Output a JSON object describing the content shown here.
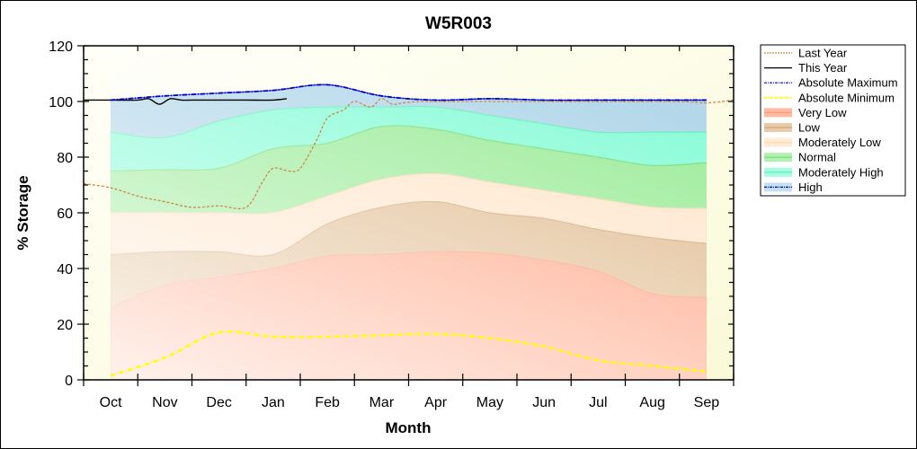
{
  "chart_data": {
    "type": "area",
    "title": "W5R003",
    "xlabel": "Month",
    "ylabel": "% Storage",
    "ylim": [
      0,
      120
    ],
    "yticks": [
      "0",
      "20",
      "40",
      "60",
      "80",
      "100",
      "120"
    ],
    "categories": [
      "Oct",
      "Nov",
      "Dec",
      "Jan",
      "Feb",
      "Mar",
      "Apr",
      "May",
      "Jun",
      "Jul",
      "Aug",
      "Sep"
    ],
    "bands": [
      {
        "name": "High",
        "color": "#b4d8ea",
        "edge": "#0000cc",
        "values": [
          100.5,
          102,
          103,
          104,
          106,
          102,
          100.5,
          101,
          100.5,
          100.5,
          100.5,
          100.5
        ]
      },
      {
        "name": "Moderately High",
        "color": "#8cfcd8",
        "edge": "#66eebb",
        "values": [
          89,
          87,
          93,
          97,
          98,
          98,
          98,
          95,
          92,
          89,
          89,
          89
        ]
      },
      {
        "name": "Normal",
        "color": "#9eec9c",
        "edge": "#77dd77",
        "values": [
          75,
          75.5,
          76,
          83,
          85,
          91,
          90,
          86,
          83,
          80,
          77,
          78
        ]
      },
      {
        "name": "Moderately Low",
        "color": "#ffe6cc",
        "edge": "#ffd7b0",
        "values": [
          60,
          60,
          60,
          60,
          66,
          72,
          74,
          71,
          68,
          65,
          62,
          61.5
        ]
      },
      {
        "name": "Low",
        "color": "#e2bf95",
        "edge": "#d4a678",
        "values": [
          45,
          46,
          46,
          45,
          56,
          62,
          64,
          60,
          58,
          54,
          51,
          49
        ]
      },
      {
        "name": "Very Low",
        "color": "#ffa98a",
        "edge": "#ff9a7a",
        "values": [
          26,
          34,
          37,
          40,
          44.5,
          45,
          46,
          45.5,
          43,
          39,
          31,
          29.5
        ]
      }
    ],
    "series": [
      {
        "name": "Last Year",
        "color": "#cc8844",
        "style": "dashed",
        "x": [
          0,
          0.5,
          1,
          1.5,
          2,
          2.5,
          3,
          3.3,
          3.5,
          3.8,
          4,
          4.3,
          4.5,
          4.8,
          5,
          5.3,
          5.5,
          5.7,
          5.9,
          6.2,
          6.5,
          7,
          8,
          9,
          10,
          11,
          11.5,
          12
        ],
        "values": [
          70.5,
          69,
          66,
          64,
          62,
          62.5,
          62,
          71,
          76,
          75,
          76,
          86,
          94,
          97,
          100,
          98,
          101,
          99,
          99.5,
          100,
          100,
          100,
          100,
          100,
          100,
          100,
          99.5,
          100.5
        ]
      },
      {
        "name": "This Year",
        "color": "#000000",
        "style": "solid",
        "x": [
          0,
          0.2,
          0.5,
          1,
          1.2,
          1.4,
          1.6,
          1.8,
          2,
          2.5,
          3,
          3.5,
          3.75
        ],
        "values": [
          100.5,
          100.5,
          100.5,
          100.5,
          101,
          99,
          101,
          100.5,
          100.5,
          100.5,
          100.5,
          100.5,
          101
        ]
      },
      {
        "name": "Absolute Maximum",
        "color": "#0000cc",
        "style": "dashdot",
        "x": [
          0.5,
          1.5,
          2.5,
          3.5,
          4.5,
          5.5,
          6.5,
          7.5,
          8.5,
          9.5,
          10.5,
          11.5
        ],
        "values": [
          100.5,
          102,
          103,
          104,
          106,
          102,
          100.5,
          101,
          100.5,
          100.5,
          100.5,
          100.5
        ]
      },
      {
        "name": "Absolute Minimum",
        "color": "#ffff00",
        "style": "dashdot",
        "x": [
          0.5,
          1.5,
          2.5,
          3.5,
          4.5,
          5.5,
          6.5,
          7.5,
          8.5,
          9.5,
          10.5,
          11.5
        ],
        "values": [
          1.5,
          8,
          17,
          15.5,
          15.5,
          16,
          16.5,
          15,
          12,
          7,
          5,
          3
        ]
      }
    ],
    "legend": [
      "Last Year",
      "This Year",
      "Absolute Maximum",
      "Absolute Minimum",
      "Very Low",
      "Low",
      "Moderately Low",
      "Normal",
      "Moderately High",
      "High"
    ],
    "legend_position": "right",
    "grid": false
  }
}
